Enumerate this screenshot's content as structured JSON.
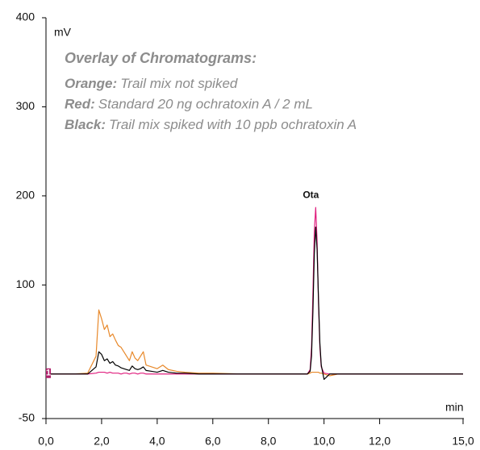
{
  "chart_data": {
    "type": "line",
    "y_label": "mV",
    "x_label": "min",
    "heading": "Overlay of Chromatograms:",
    "peak_label": "Ota",
    "marker_label": "1",
    "x": [
      0,
      0.5,
      1,
      1.5,
      1.8,
      1.9,
      2.0,
      2.1,
      2.2,
      2.3,
      2.4,
      2.5,
      2.6,
      2.7,
      2.8,
      2.9,
      3.0,
      3.1,
      3.2,
      3.3,
      3.4,
      3.5,
      3.6,
      3.8,
      4.0,
      4.2,
      4.4,
      4.7,
      5.0,
      5.5,
      6,
      7,
      8,
      9,
      9.4,
      9.5,
      9.55,
      9.6,
      9.65,
      9.7,
      9.75,
      9.8,
      9.85,
      9.9,
      10.0,
      10.2,
      10.5,
      11,
      12,
      13,
      14,
      15
    ],
    "series": [
      {
        "label": "Orange:",
        "name": "Trail mix not spiked",
        "color": "#e8892b",
        "values": [
          0,
          0,
          0,
          1,
          20,
          72,
          62,
          50,
          55,
          42,
          45,
          38,
          32,
          30,
          25,
          20,
          15,
          25,
          18,
          15,
          20,
          25,
          10,
          8,
          6,
          10,
          5,
          3,
          2,
          1,
          1,
          0,
          0,
          0,
          0,
          1,
          2,
          2,
          2,
          2,
          2,
          2,
          1,
          1,
          0,
          -2,
          0,
          0,
          0,
          0,
          0,
          0
        ]
      },
      {
        "label": "Red:",
        "name": "Standard 20 ng ochratoxin A / 2 mL",
        "color": "#e0207f",
        "values": [
          0,
          0,
          0,
          0,
          1,
          2,
          2,
          2,
          1,
          2,
          1,
          1,
          1,
          0,
          1,
          1,
          0,
          1,
          1,
          0,
          1,
          1,
          0,
          0,
          0,
          0,
          0,
          0,
          0,
          0,
          0,
          0,
          0,
          0,
          0,
          5,
          30,
          90,
          160,
          187,
          150,
          80,
          30,
          8,
          1,
          0,
          0,
          0,
          0,
          0,
          0,
          0
        ]
      },
      {
        "label": "Black:",
        "name": "Trail mix spiked with 10 ppb ochratoxin A",
        "color": "#000000",
        "values": [
          0,
          0,
          0,
          0,
          8,
          25,
          22,
          15,
          17,
          12,
          14,
          10,
          9,
          7,
          6,
          5,
          4,
          9,
          6,
          5,
          6,
          8,
          4,
          3,
          2,
          4,
          2,
          1,
          1,
          0,
          0,
          0,
          0,
          0,
          0,
          3,
          20,
          70,
          135,
          165,
          140,
          85,
          35,
          10,
          -6,
          0,
          0,
          0,
          0,
          0,
          0,
          0
        ]
      }
    ],
    "xlim": [
      0,
      15
    ],
    "ylim": [
      -50,
      400
    ],
    "xticks": [
      {
        "value": 0,
        "label": "0,0"
      },
      {
        "value": 2,
        "label": "2,0"
      },
      {
        "value": 4,
        "label": "4,0"
      },
      {
        "value": 6,
        "label": "6,0"
      },
      {
        "value": 8,
        "label": "8,0"
      },
      {
        "value": 10,
        "label": "10,0"
      },
      {
        "value": 12,
        "label": "12,0"
      },
      {
        "value": 15,
        "label": "15,0"
      }
    ],
    "yticks": [
      -50,
      100,
      200,
      300,
      400
    ],
    "grid": false
  }
}
